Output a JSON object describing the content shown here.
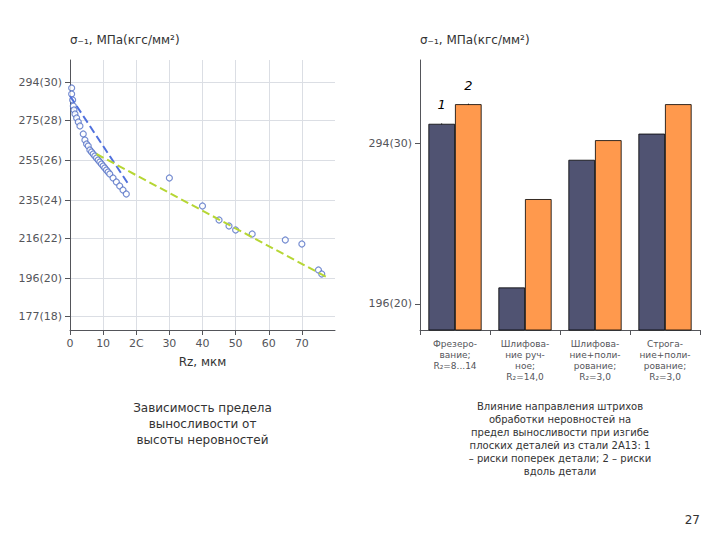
{
  "chart_data": [
    {
      "type": "scatter",
      "title": "Зависимость предела\nвыносливости от\nвысоты неровностей",
      "xlabel": "Rz, мкм",
      "ylabel": "σ₋₁, МПа(кгс/мм²)",
      "xlim": [
        0,
        80
      ],
      "ylim": [
        170,
        305
      ],
      "xticks": [
        0,
        10,
        {
          "value": 20,
          "label": "2C"
        },
        30,
        40,
        50,
        60,
        70
      ],
      "yticks": [
        {
          "value": 177,
          "label": "177(18)"
        },
        {
          "value": 196,
          "label": "196(20)"
        },
        {
          "value": 216,
          "label": "216(22)"
        },
        {
          "value": 235,
          "label": "235(24)"
        },
        {
          "value": 255,
          "label": "255(26)"
        },
        {
          "value": 275,
          "label": "275(28)"
        },
        {
          "value": 294,
          "label": "294(30)"
        }
      ],
      "grid": true,
      "series": [
        {
          "type": "scatter",
          "marker": "circle",
          "x": [
            0.5,
            0.5,
            0.8,
            1.0,
            1.2,
            1.5,
            2.0,
            2.5,
            3.0,
            4.0,
            4.5,
            5.0,
            5.5,
            6.0,
            6.5,
            7.0,
            7.5,
            8.0,
            8.5,
            9.0,
            9.5,
            10.0,
            10.5,
            11.0,
            11.5,
            12.0,
            13.0,
            14.0,
            15.0,
            16.0,
            17.0,
            30,
            40,
            45,
            48,
            50,
            55,
            65,
            70,
            75,
            76
          ],
          "values": [
            291,
            288,
            285,
            282,
            280,
            278,
            276,
            274,
            272,
            268,
            265,
            263,
            262,
            260,
            259,
            258,
            257,
            256,
            255,
            254,
            253,
            252,
            251,
            250,
            249,
            248,
            246,
            244,
            242,
            240,
            238,
            246,
            232,
            225,
            222,
            220,
            218,
            215,
            213,
            200,
            198
          ]
        },
        {
          "type": "line",
          "line_style": "dashed",
          "x": [
            0,
            18
          ],
          "values": [
            287,
            242
          ]
        },
        {
          "type": "line",
          "line_style": "dashed",
          "x": [
            8,
            78
          ],
          "values": [
            258,
            196
          ]
        }
      ]
    },
    {
      "type": "bar",
      "title": "Влияние направления штрихов\nобработки неровностей на\nпредел выносливости при изгибе\nплоских деталей из стали 2А13: 1\n– риски поперек детали; 2 – риски\nвдоль детали",
      "ylabel": "σ₋₁, МПа(кгс/мм²)",
      "categories": [
        "Фрезеро-\nвание;\nR₂=8...14",
        "Шлифова-\nние руч-\nное;\nR₂=14,0",
        "Шлифова-\nние+поли-\nрование;\nR₂=3,0",
        "Строга-\nние+поли-\nрование;\nR₂=3,0"
      ],
      "ylim": [
        180,
        345
      ],
      "yticks": [
        {
          "value": 196,
          "label": "196(20)"
        },
        {
          "value": 294,
          "label": "294(30)"
        }
      ],
      "grid": false,
      "series": [
        {
          "values": [
            306,
            206,
            284,
            300
          ]
        },
        {
          "values": [
            318,
            260,
            296,
            318
          ]
        }
      ],
      "annotations": [
        {
          "text": "1",
          "series": 0,
          "category": 0
        },
        {
          "text": "2",
          "series": 1,
          "category": 0
        },
        {
          "text": "27"
        }
      ]
    }
  ]
}
